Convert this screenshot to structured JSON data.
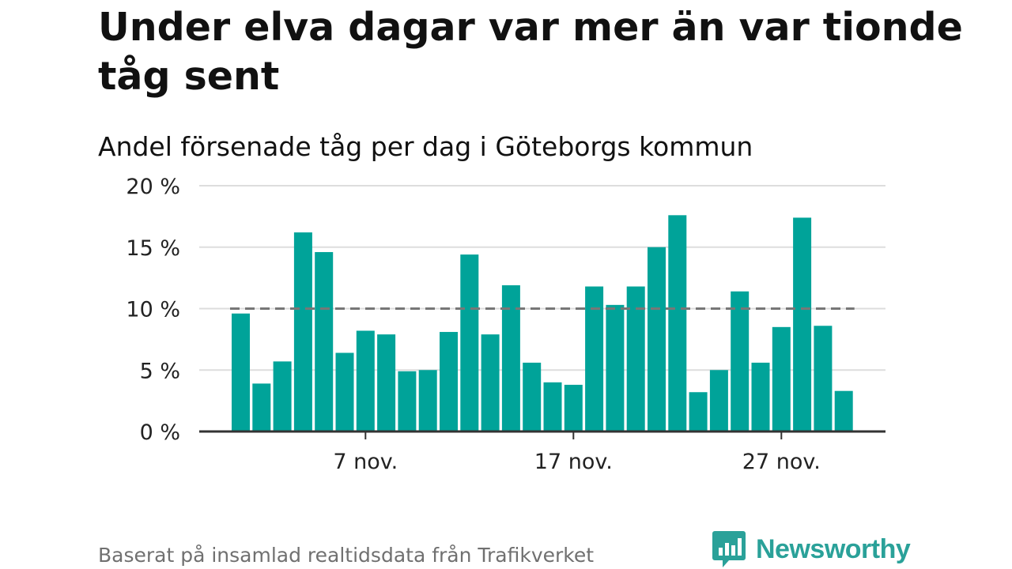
{
  "header": {
    "title": "Under elva dagar var mer än var tionde tåg sent",
    "subtitle": "Andel försenade tåg per dag i Göteborgs kommun"
  },
  "footer": {
    "source": "Baserat på insamlad realtidsdata från Trafikverket",
    "brand": "Newsworthy"
  },
  "colors": {
    "bar": "#00a399",
    "reference_line": "#777777",
    "grid": "#dddddd",
    "axis": "#333333",
    "brand": "#2aa199"
  },
  "chart_data": {
    "type": "bar",
    "x": [
      "2023-11-01",
      "2023-11-02",
      "2023-11-03",
      "2023-11-04",
      "2023-11-05",
      "2023-11-06",
      "2023-11-07",
      "2023-11-08",
      "2023-11-09",
      "2023-11-10",
      "2023-11-11",
      "2023-11-12",
      "2023-11-13",
      "2023-11-14",
      "2023-11-15",
      "2023-11-16",
      "2023-11-17",
      "2023-11-18",
      "2023-11-19",
      "2023-11-20",
      "2023-11-21",
      "2023-11-22",
      "2023-11-23",
      "2023-11-24",
      "2023-11-25",
      "2023-11-26",
      "2023-11-27",
      "2023-11-28",
      "2023-11-29",
      "2023-11-30"
    ],
    "values": [
      9.6,
      3.9,
      5.7,
      16.2,
      14.6,
      6.4,
      8.2,
      7.9,
      4.9,
      5.0,
      8.1,
      14.4,
      7.9,
      11.9,
      5.6,
      4.0,
      3.8,
      11.8,
      10.3,
      11.8,
      15.0,
      17.6,
      3.2,
      5.0,
      11.4,
      5.6,
      8.5,
      17.4,
      8.6,
      3.3
    ],
    "ylim": [
      0,
      20
    ],
    "yticks": [
      0,
      5,
      10,
      15,
      20
    ],
    "ytick_labels": [
      "0 %",
      "5 %",
      "10 %",
      "15 %",
      "20 %"
    ],
    "xticks": [
      "2023-11-07",
      "2023-11-17",
      "2023-11-27"
    ],
    "xtick_labels": [
      "7 nov.",
      "17 nov.",
      "27 nov."
    ],
    "reference_line": 10,
    "grid": true,
    "xlabel": "",
    "ylabel": ""
  }
}
